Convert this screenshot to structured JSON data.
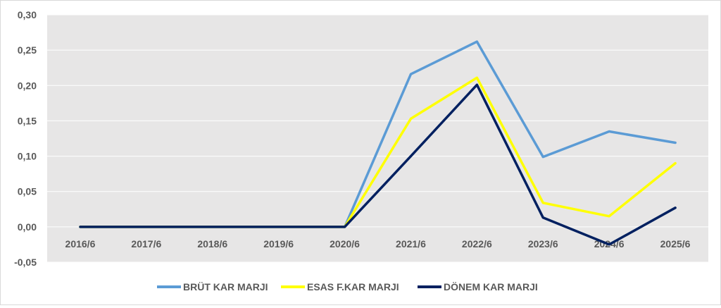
{
  "chart_data": {
    "type": "line",
    "categories": [
      "2016/6",
      "2017/6",
      "2018/6",
      "2019/6",
      "2020/6",
      "2021/6",
      "2022/6",
      "2023/6",
      "2024/6",
      "2025/6"
    ],
    "series": [
      {
        "name": "BRÜT KAR MARJI",
        "values": [
          0,
          0,
          0,
          0,
          0,
          0.216,
          0.262,
          0.099,
          0.135,
          0.119
        ]
      },
      {
        "name": "ESAS F.KAR MARJI",
        "values": [
          0,
          0,
          0,
          0,
          0,
          0.153,
          0.211,
          0.034,
          0.015,
          0.09
        ]
      },
      {
        "name": "DÖNEM KAR MARJI",
        "values": [
          0,
          0,
          0,
          0,
          0,
          0.1,
          0.201,
          0.013,
          -0.025,
          0.027
        ]
      }
    ],
    "y_ticks": [
      "-0,05",
      "0,00",
      "0,05",
      "0,10",
      "0,15",
      "0,20",
      "0,25",
      "0,30"
    ],
    "ylim": [
      -0.05,
      0.3
    ],
    "grid": true,
    "legend_position": "bottom",
    "colors": {
      "series": [
        "#5b9bd5",
        "#ffff00",
        "#002060"
      ],
      "plot_background": "#e7e6e6",
      "gridline": "#ffffff",
      "text": "#595959"
    }
  }
}
